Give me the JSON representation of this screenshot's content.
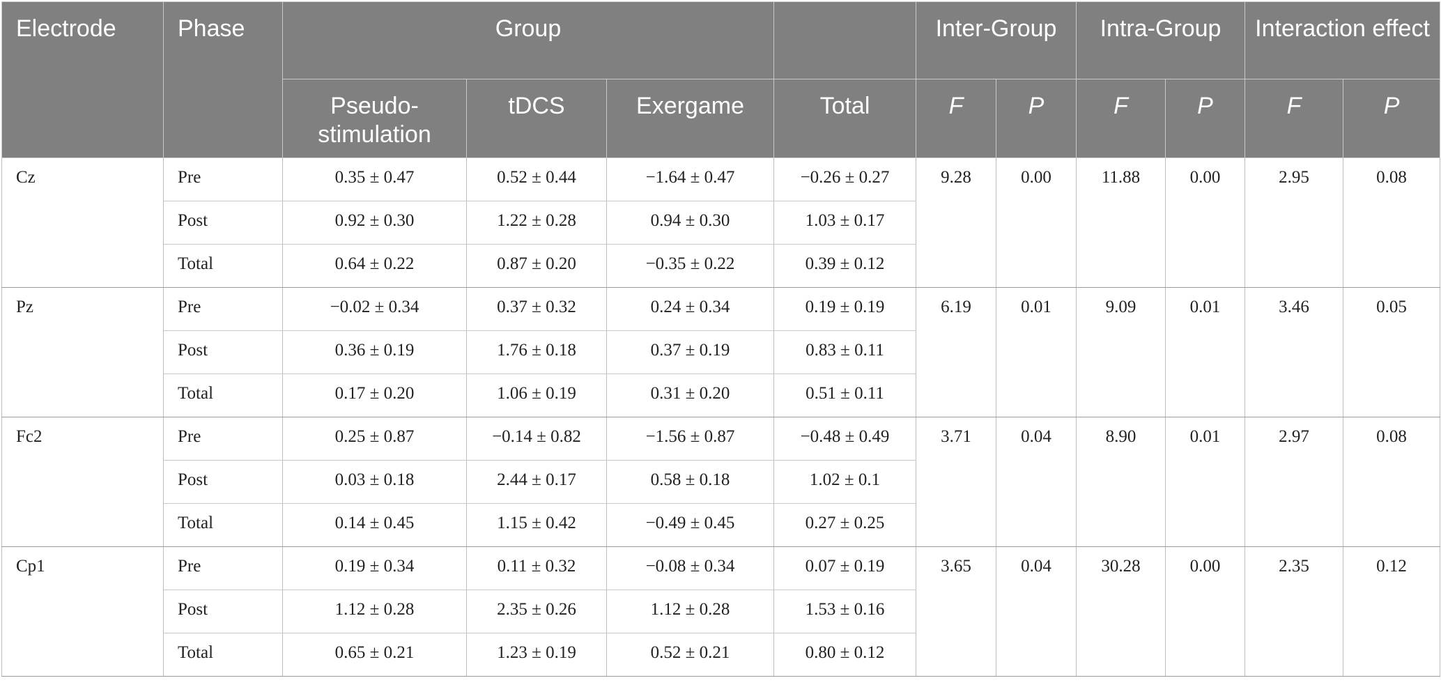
{
  "header": {
    "electrode": "Electrode",
    "phase": "Phase",
    "group": "Group",
    "inter_group": "Inter-Group",
    "intra_group": "Intra-Group",
    "interaction": "Interaction effect",
    "pseudo": "Pseudo-stimulation",
    "tdcs": "tDCS",
    "exergame": "Exergame",
    "total": "Total",
    "f": "F",
    "p": "P"
  },
  "rows": [
    {
      "electrode": "Cz",
      "inter_f": "9.28",
      "inter_p": "0.00",
      "intra_f": "11.88",
      "intra_p": "0.00",
      "int_f": "2.95",
      "int_p": "0.08",
      "phases": [
        {
          "phase": "Pre",
          "pseudo": "0.35 ± 0.47",
          "tdcs": "0.52 ± 0.44",
          "exergame": "−1.64 ± 0.47",
          "total": "−0.26 ± 0.27"
        },
        {
          "phase": "Post",
          "pseudo": "0.92 ± 0.30",
          "tdcs": "1.22 ± 0.28",
          "exergame": "0.94 ± 0.30",
          "total": "1.03 ± 0.17"
        },
        {
          "phase": "Total",
          "pseudo": "0.64 ± 0.22",
          "tdcs": "0.87 ± 0.20",
          "exergame": "−0.35 ± 0.22",
          "total": "0.39 ± 0.12"
        }
      ]
    },
    {
      "electrode": "Pz",
      "inter_f": "6.19",
      "inter_p": "0.01",
      "intra_f": "9.09",
      "intra_p": "0.01",
      "int_f": "3.46",
      "int_p": "0.05",
      "phases": [
        {
          "phase": "Pre",
          "pseudo": "−0.02 ± 0.34",
          "tdcs": "0.37 ± 0.32",
          "exergame": "0.24 ± 0.34",
          "total": "0.19 ± 0.19"
        },
        {
          "phase": "Post",
          "pseudo": "0.36 ± 0.19",
          "tdcs": "1.76 ± 0.18",
          "exergame": "0.37 ± 0.19",
          "total": "0.83 ± 0.11"
        },
        {
          "phase": "Total",
          "pseudo": "0.17 ± 0.20",
          "tdcs": "1.06 ± 0.19",
          "exergame": "0.31 ± 0.20",
          "total": "0.51 ± 0.11"
        }
      ]
    },
    {
      "electrode": "Fc2",
      "inter_f": "3.71",
      "inter_p": "0.04",
      "intra_f": "8.90",
      "intra_p": "0.01",
      "int_f": "2.97",
      "int_p": "0.08",
      "phases": [
        {
          "phase": "Pre",
          "pseudo": "0.25 ± 0.87",
          "tdcs": "−0.14 ± 0.82",
          "exergame": "−1.56 ± 0.87",
          "total": "−0.48 ± 0.49"
        },
        {
          "phase": "Post",
          "pseudo": "0.03 ± 0.18",
          "tdcs": "2.44 ± 0.17",
          "exergame": "0.58 ± 0.18",
          "total": "1.02 ± 0.1"
        },
        {
          "phase": "Total",
          "pseudo": "0.14 ± 0.45",
          "tdcs": "1.15 ± 0.42",
          "exergame": "−0.49 ± 0.45",
          "total": "0.27 ± 0.25"
        }
      ]
    },
    {
      "electrode": "Cp1",
      "inter_f": "3.65",
      "inter_p": "0.04",
      "intra_f": "30.28",
      "intra_p": "0.00",
      "int_f": "2.35",
      "int_p": "0.12",
      "phases": [
        {
          "phase": "Pre",
          "pseudo": "0.19 ± 0.34",
          "tdcs": "0.11 ± 0.32",
          "exergame": "−0.08 ± 0.34",
          "total": "0.07 ± 0.19"
        },
        {
          "phase": "Post",
          "pseudo": "1.12 ± 0.28",
          "tdcs": "2.35 ± 0.26",
          "exergame": "1.12 ± 0.28",
          "total": "1.53 ± 0.16"
        },
        {
          "phase": "Total",
          "pseudo": "0.65 ± 0.21",
          "tdcs": "1.23 ± 0.19",
          "exergame": "0.52 ± 0.21",
          "total": "0.80 ± 0.12"
        }
      ]
    }
  ]
}
